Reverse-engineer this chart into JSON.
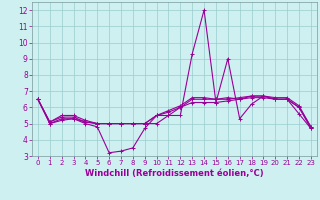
{
  "xlabel": "Windchill (Refroidissement éolien,°C)",
  "xlim": [
    -0.5,
    23.5
  ],
  "ylim": [
    3,
    12.5
  ],
  "yticks": [
    3,
    4,
    5,
    6,
    7,
    8,
    9,
    10,
    11,
    12
  ],
  "xticks": [
    0,
    1,
    2,
    3,
    4,
    5,
    6,
    7,
    8,
    9,
    10,
    11,
    12,
    13,
    14,
    15,
    16,
    17,
    18,
    19,
    20,
    21,
    22,
    23
  ],
  "background_color": "#cff0f0",
  "grid_color": "#99cccc",
  "line_color": "#990099",
  "series": [
    [
      6.5,
      5.0,
      5.2,
      5.3,
      5.0,
      4.8,
      3.2,
      3.3,
      3.5,
      4.7,
      5.5,
      5.5,
      5.5,
      9.3,
      12.0,
      6.3,
      9.0,
      5.3,
      6.2,
      6.7,
      6.5,
      6.5,
      5.6,
      4.7
    ],
    [
      6.5,
      5.0,
      5.3,
      5.3,
      5.1,
      5.0,
      5.0,
      5.0,
      5.0,
      5.0,
      5.0,
      5.5,
      6.0,
      6.3,
      6.3,
      6.3,
      6.4,
      6.5,
      6.6,
      6.6,
      6.5,
      6.5,
      6.0,
      4.7
    ],
    [
      6.5,
      5.1,
      5.4,
      5.4,
      5.1,
      5.0,
      5.0,
      5.0,
      5.0,
      5.0,
      5.5,
      5.7,
      6.0,
      6.5,
      6.5,
      6.5,
      6.5,
      6.6,
      6.7,
      6.7,
      6.6,
      6.6,
      6.1,
      4.8
    ],
    [
      6.5,
      5.1,
      5.5,
      5.5,
      5.2,
      5.0,
      5.0,
      5.0,
      5.0,
      5.0,
      5.5,
      5.8,
      6.1,
      6.6,
      6.6,
      6.5,
      6.6,
      6.5,
      6.7,
      6.7,
      6.5,
      6.5,
      6.0,
      4.8
    ]
  ],
  "marker": "+",
  "markersize": 3,
  "linewidth": 0.8,
  "tick_fontsize": 5.5,
  "xlabel_fontsize": 6.0
}
